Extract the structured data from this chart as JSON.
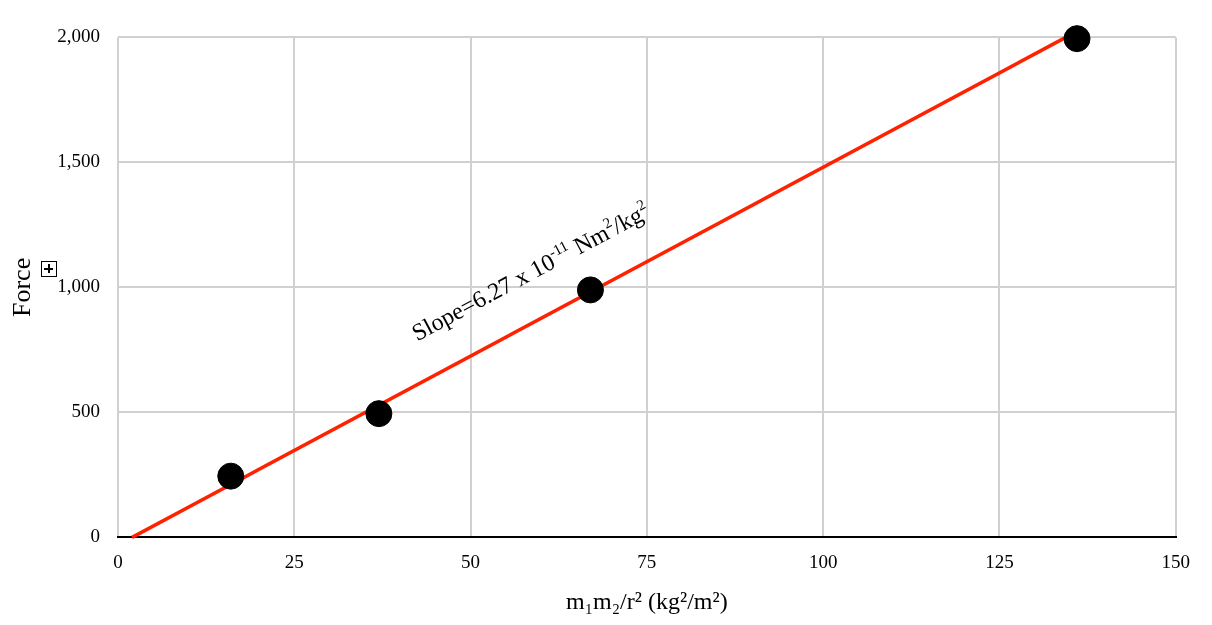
{
  "chart_data": {
    "type": "scatter",
    "xlabel": "m₁m₂/r² (kg²/m²)",
    "ylabel": "Force",
    "xlim": [
      0,
      150
    ],
    "xticks": [
      0,
      25,
      50,
      75,
      100,
      125,
      150
    ],
    "ylim": [
      0,
      2000
    ],
    "yticks": [
      0,
      500,
      {
        "value": 1000,
        "label": "1,000"
      },
      {
        "value": 1500,
        "label": "1,500"
      },
      {
        "value": 2000,
        "label": "2,000"
      }
    ],
    "grid": true,
    "legend": false,
    "marker": "circle",
    "series": [
      {
        "color": "#000000",
        "x": [
          16,
          37,
          67,
          136
        ],
        "values": [
          245,
          495,
          990,
          1995
        ]
      },
      {
        "type": "line",
        "color": "#ff2200",
        "x": [
          2,
          134.4
        ],
        "values": [
          0,
          2000
        ],
        "marker": "none"
      }
    ],
    "annotations": [
      "Slope=6.27 x 10$^{-11}$ Nm$^{2}$/kg$^{2}$"
    ]
  }
}
